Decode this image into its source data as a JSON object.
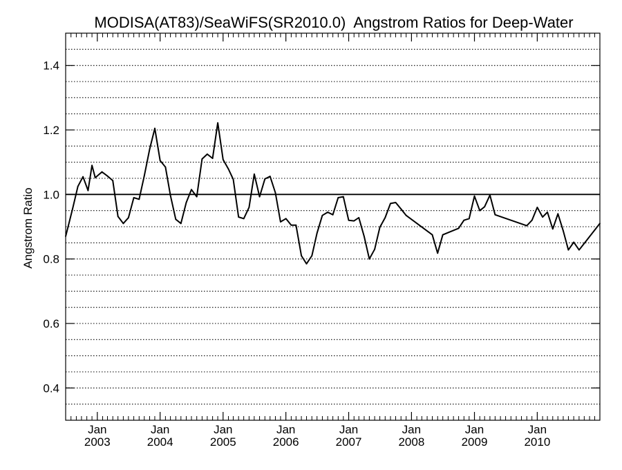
{
  "chart_data": {
    "type": "line",
    "title": "MODISA(AT83)/SeaWiFS(SR2010.0)  Angstrom Ratios for Deep-Water",
    "xlabel": "",
    "ylabel": "Angstrom Ratio",
    "xlim": [
      "2002-07-01",
      "2010-12-31"
    ],
    "ylim": [
      0.3,
      1.5
    ],
    "yticks": [
      0.4,
      0.6,
      0.8,
      1.0,
      1.2,
      1.4
    ],
    "ytick_labels": [
      "0.4",
      "0.6",
      "0.8",
      "1.0",
      "1.2",
      "1.4"
    ],
    "x_major_ticks": [
      {
        "month": "Jan",
        "year": "2003",
        "date": "2003-01-01"
      },
      {
        "month": "Jan",
        "year": "2004",
        "date": "2004-01-01"
      },
      {
        "month": "Jan",
        "year": "2005",
        "date": "2005-01-01"
      },
      {
        "month": "Jan",
        "year": "2006",
        "date": "2006-01-01"
      },
      {
        "month": "Jan",
        "year": "2007",
        "date": "2007-01-01"
      },
      {
        "month": "Jan",
        "year": "2008",
        "date": "2008-01-01"
      },
      {
        "month": "Jan",
        "year": "2009",
        "date": "2009-01-01"
      },
      {
        "month": "Jan",
        "year": "2010",
        "date": "2010-01-01"
      }
    ],
    "x_minor_ticks": "monthly",
    "grid": "horizontal dotted every 0.05",
    "reference_line": 1.0,
    "series": [
      {
        "color": "#000000",
        "x": [
          "2002-07-01",
          "2002-08-10",
          "2002-09-10",
          "2002-10-10",
          "2002-11-08",
          "2002-12-01",
          "2002-12-20",
          "2003-01-28",
          "2003-03-01",
          "2003-04-01",
          "2003-05-01",
          "2003-06-01",
          "2003-07-01",
          "2003-08-01",
          "2003-09-01",
          "2003-10-01",
          "2003-11-01",
          "2003-12-01",
          "2004-01-01",
          "2004-02-01",
          "2004-03-01",
          "2004-04-01",
          "2004-05-01",
          "2004-06-01",
          "2004-07-01",
          "2004-08-01",
          "2004-09-01",
          "2004-10-01",
          "2004-11-01",
          "2004-12-01",
          "2005-01-01",
          "2005-02-01",
          "2005-03-01",
          "2005-04-01",
          "2005-05-01",
          "2005-06-01",
          "2005-07-01",
          "2005-08-01",
          "2005-09-01",
          "2005-10-01",
          "2005-11-01",
          "2005-12-01",
          "2006-01-01",
          "2006-02-01",
          "2006-03-01",
          "2006-04-01",
          "2006-05-01",
          "2006-06-01",
          "2006-07-01",
          "2006-08-01",
          "2006-09-01",
          "2006-10-01",
          "2006-11-01",
          "2006-12-01",
          "2007-01-01",
          "2007-02-01",
          "2007-03-01",
          "2007-04-01",
          "2007-05-01",
          "2007-06-01",
          "2007-07-01",
          "2007-08-01",
          "2007-09-01",
          "2007-10-01",
          "2007-11-01",
          "2007-12-01",
          "2008-05-01",
          "2008-06-01",
          "2008-07-01",
          "2008-10-01",
          "2008-11-01",
          "2008-12-01",
          "2009-01-01",
          "2009-02-01",
          "2009-03-01",
          "2009-04-01",
          "2009-05-01",
          "2009-11-01",
          "2009-12-01",
          "2010-01-01",
          "2010-02-01",
          "2010-03-01",
          "2010-04-01",
          "2010-05-01",
          "2010-06-01",
          "2010-07-01",
          "2010-08-01",
          "2010-09-01",
          "2010-10-01",
          "2010-12-31"
        ],
        "y": [
          0.87,
          0.955,
          1.025,
          1.055,
          1.012,
          1.09,
          1.052,
          1.07,
          1.057,
          1.043,
          0.932,
          0.91,
          0.928,
          0.99,
          0.985,
          1.058,
          1.14,
          1.205,
          1.105,
          1.085,
          0.997,
          0.923,
          0.91,
          0.975,
          1.015,
          0.993,
          1.11,
          1.125,
          1.112,
          1.222,
          1.108,
          1.079,
          1.047,
          0.93,
          0.925,
          0.96,
          1.063,
          0.993,
          1.048,
          1.056,
          1.005,
          0.915,
          0.925,
          0.905,
          0.905,
          0.81,
          0.785,
          0.81,
          0.88,
          0.935,
          0.945,
          0.937,
          0.99,
          0.993,
          0.92,
          0.918,
          0.928,
          0.87,
          0.8,
          0.83,
          0.898,
          0.928,
          0.972,
          0.975,
          0.955,
          0.935,
          0.875,
          0.818,
          0.875,
          0.895,
          0.92,
          0.925,
          0.995,
          0.95,
          0.962,
          0.998,
          0.937,
          0.903,
          0.92,
          0.96,
          0.93,
          0.945,
          0.893,
          0.94,
          0.887,
          0.828,
          0.852,
          0.828,
          0.848,
          0.91
        ]
      }
    ]
  }
}
